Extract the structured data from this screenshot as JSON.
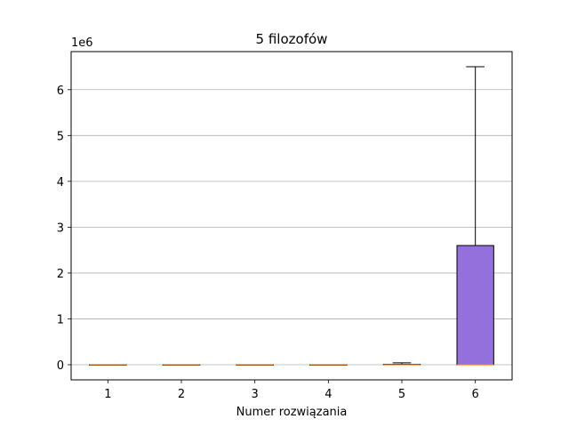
{
  "chart_data": {
    "type": "box",
    "title": "5 filozofów",
    "xlabel": "Numer rozwiązania",
    "ylabel": "",
    "scale_label": "1e6",
    "categories": [
      "1",
      "2",
      "3",
      "4",
      "5",
      "6"
    ],
    "boxes": [
      {
        "category": "1",
        "whisker_low": 0,
        "q1": 0,
        "median": 0,
        "q3": 0,
        "whisker_high": 0
      },
      {
        "category": "2",
        "whisker_low": 0,
        "q1": 0,
        "median": 0,
        "q3": 0,
        "whisker_high": 0
      },
      {
        "category": "3",
        "whisker_low": 0,
        "q1": 0,
        "median": 0,
        "q3": 0,
        "whisker_high": 0
      },
      {
        "category": "4",
        "whisker_low": 0,
        "q1": 0,
        "median": 0,
        "q3": 0,
        "whisker_high": 0
      },
      {
        "category": "5",
        "whisker_low": 0,
        "q1": 0,
        "median": 0,
        "q3": 0.01,
        "whisker_high": 0.04
      },
      {
        "category": "6",
        "whisker_low": 0,
        "q1": 0,
        "median": 0,
        "q3": 2.6,
        "whisker_high": 6.5
      }
    ],
    "yticks": [
      0,
      1,
      2,
      3,
      4,
      5,
      6
    ],
    "ylim": [
      -0.33,
      6.83
    ],
    "grid": "horizontal",
    "box_color": "#9370db",
    "median_color": "#ff7f0e"
  }
}
